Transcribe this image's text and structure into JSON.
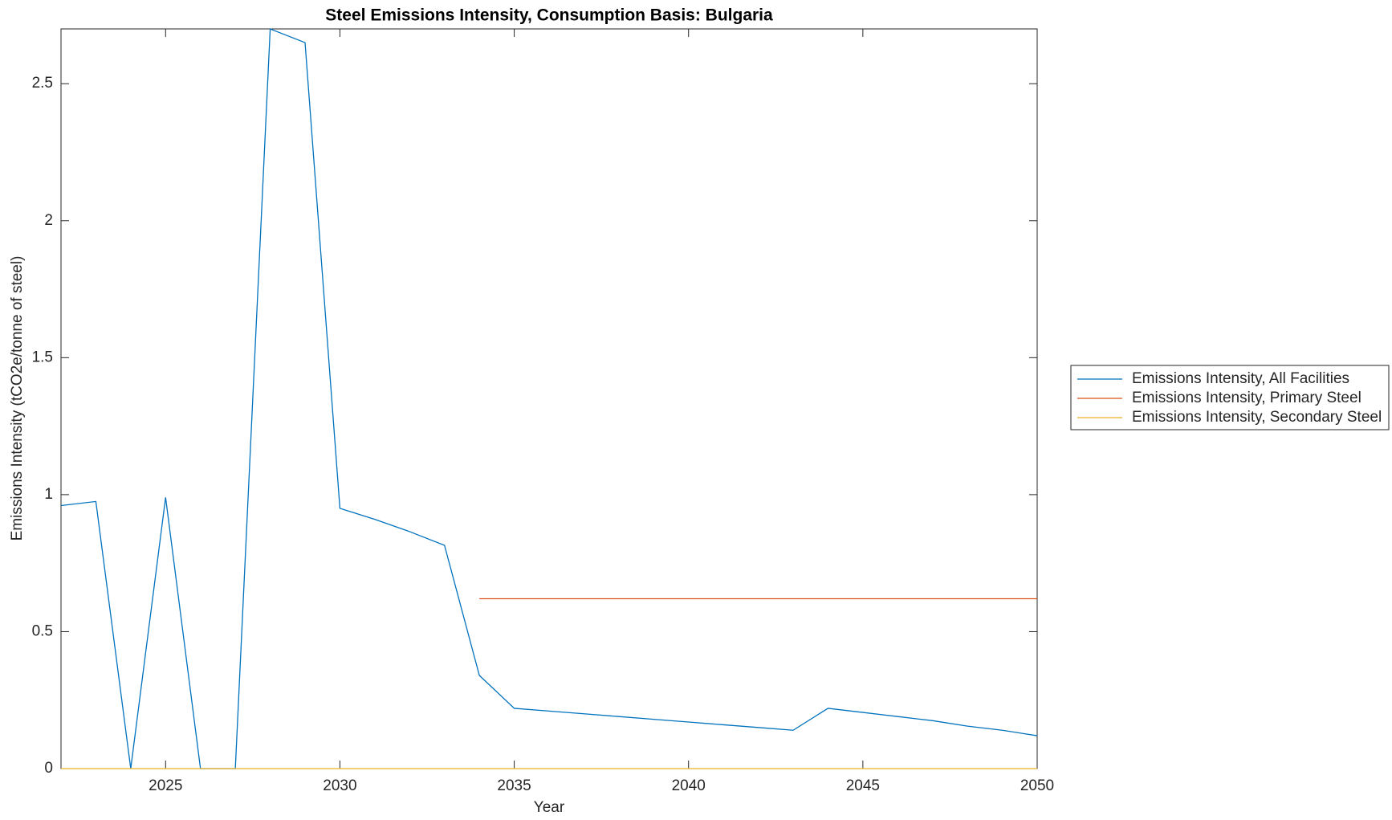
{
  "chart_data": {
    "type": "line",
    "title": "Steel Emissions Intensity, Consumption Basis: Bulgaria",
    "xlabel": "Year",
    "ylabel": "Emissions Intensity (tCO2e/tonne of steel)",
    "x": [
      2022,
      2023,
      2024,
      2025,
      2026,
      2027,
      2028,
      2029,
      2030,
      2031,
      2032,
      2033,
      2034,
      2035,
      2036,
      2037,
      2038,
      2039,
      2040,
      2041,
      2042,
      2043,
      2044,
      2045,
      2046,
      2047,
      2048,
      2049,
      2050
    ],
    "series": [
      {
        "name": "Emissions Intensity, All Facilities",
        "color": "#0072BD",
        "values": [
          0.96,
          0.975,
          0,
          0.99,
          0,
          0,
          2.7,
          2.65,
          0.95,
          0.91,
          0.865,
          0.815,
          0.34,
          0.22,
          0.21,
          0.2,
          0.19,
          0.18,
          0.17,
          0.16,
          0.15,
          0.14,
          0.22,
          0.205,
          0.19,
          0.175,
          0.155,
          0.14,
          0.12
        ]
      },
      {
        "name": "Emissions Intensity, Primary Steel",
        "color": "#D95319",
        "values": [
          null,
          null,
          null,
          null,
          null,
          null,
          null,
          null,
          null,
          null,
          null,
          null,
          0.62,
          0.62,
          0.62,
          0.62,
          0.62,
          0.62,
          0.62,
          0.62,
          0.62,
          0.62,
          0.62,
          0.62,
          0.62,
          0.62,
          0.62,
          0.62,
          0.62
        ]
      },
      {
        "name": "Emissions Intensity, Secondary Steel",
        "color": "#EDB120",
        "values": [
          0,
          0,
          0,
          0,
          0,
          0,
          0,
          0,
          0,
          0,
          0,
          0,
          0,
          0,
          0,
          0,
          0,
          0,
          0,
          0,
          0,
          0,
          0,
          0,
          0,
          0,
          0,
          0,
          0
        ]
      }
    ],
    "xlim": [
      2022,
      2050
    ],
    "xticks": [
      2025,
      2030,
      2035,
      2040,
      2045,
      2050
    ],
    "ylim": [
      0,
      2.7
    ],
    "yticks": [
      0,
      0.5,
      1,
      1.5,
      2,
      2.5
    ],
    "legend": "outside right"
  }
}
